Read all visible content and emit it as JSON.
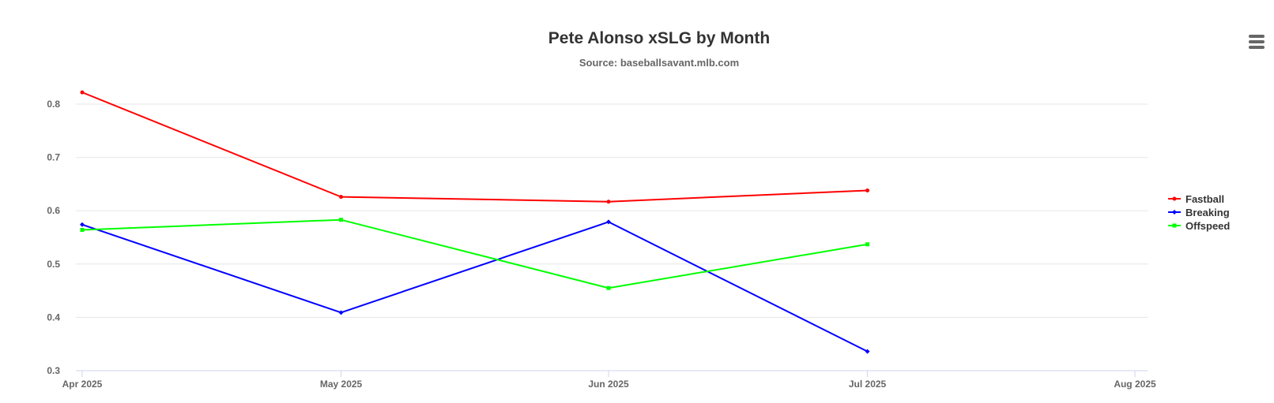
{
  "chart_data": {
    "type": "line",
    "title": "Pete Alonso xSLG by Month",
    "subtitle": "Source: baseballsavant.mlb.com",
    "xlabel": "",
    "ylabel": "",
    "x_ticks": [
      "Apr 2025",
      "May 2025",
      "Jun 2025",
      "Jul 2025",
      "Aug 2025"
    ],
    "x_range": [
      "2025-04-01",
      "2025-08-01"
    ],
    "ylim": [
      0.3,
      0.8
    ],
    "y_ticks": [
      "0.3",
      "0.4",
      "0.5",
      "0.6",
      "0.7",
      "0.8"
    ],
    "grid": true,
    "legend_position": "right",
    "series": [
      {
        "name": "Fastball",
        "color": "#ff0000",
        "marker": "circle",
        "points": [
          {
            "x": "2025-04-01",
            "y": 0.822
          },
          {
            "x": "2025-05-01",
            "y": 0.626
          },
          {
            "x": "2025-06-01",
            "y": 0.617
          },
          {
            "x": "2025-07-01",
            "y": 0.638
          }
        ]
      },
      {
        "name": "Breaking",
        "color": "#0000ff",
        "marker": "diamond",
        "points": [
          {
            "x": "2025-04-01",
            "y": 0.574
          },
          {
            "x": "2025-05-01",
            "y": 0.409
          },
          {
            "x": "2025-06-01",
            "y": 0.579
          },
          {
            "x": "2025-07-01",
            "y": 0.336
          }
        ]
      },
      {
        "name": "Offspeed",
        "color": "#00ff00",
        "marker": "square",
        "points": [
          {
            "x": "2025-04-01",
            "y": 0.564
          },
          {
            "x": "2025-05-01",
            "y": 0.583
          },
          {
            "x": "2025-06-01",
            "y": 0.455
          },
          {
            "x": "2025-07-01",
            "y": 0.537
          }
        ]
      }
    ]
  },
  "menu": {
    "icon": "hamburger-menu-icon"
  }
}
